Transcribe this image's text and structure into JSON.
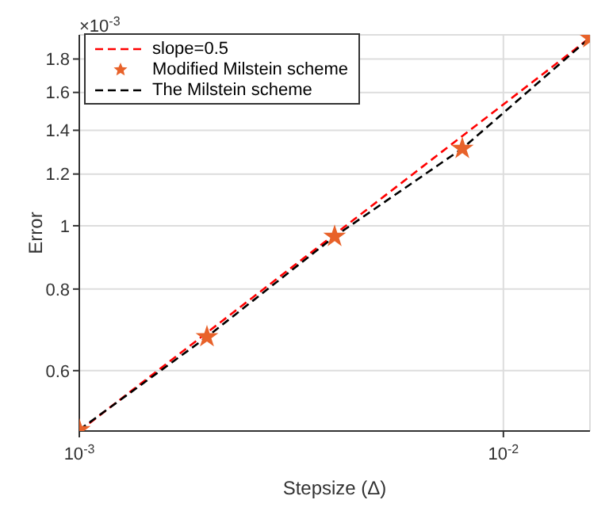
{
  "chart_data": {
    "type": "line",
    "xlabel": "Stepsize (Δ)",
    "ylabel": "Error",
    "annotations": [
      "×10$^{-3}$"
    ],
    "x": [
      0.001,
      0.002,
      0.004,
      0.008,
      0.016
    ],
    "series": [
      {
        "name": "slope=0.5",
        "type": "line",
        "color": "#ff0000",
        "line_style": "dashed",
        "marker": "none",
        "values": [
          0.485,
          0.686,
          0.97,
          1.372,
          1.94
        ]
      },
      {
        "name": "Modified Milstein scheme",
        "type": "scatter",
        "color": "#e8622a",
        "marker": "star",
        "values": [
          0.487,
          0.676,
          0.963,
          1.313,
          1.94
        ]
      },
      {
        "name": "The Milstein scheme",
        "type": "line",
        "color": "#000000",
        "line_style": "dashed",
        "marker": "none",
        "values": [
          0.487,
          0.676,
          0.963,
          1.313,
          1.94
        ]
      }
    ],
    "log": "xy",
    "xlim": [
      0.001,
      0.016
    ],
    "ylim": [
      0.485,
      1.96
    ],
    "xticks": [
      {
        "value": 0.001,
        "label": "10$^{-3}$"
      },
      {
        "value": 0.01,
        "label": "10$^{-2}$"
      }
    ],
    "yticks": [
      0.6,
      0.8,
      1,
      1.2,
      1.4,
      1.6,
      1.8
    ],
    "grid": true,
    "legend": "top left"
  }
}
